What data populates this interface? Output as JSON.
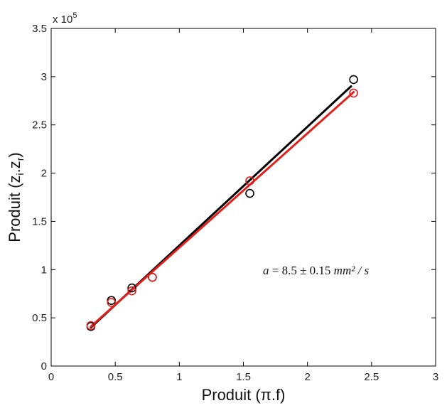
{
  "chart_data": {
    "type": "scatter",
    "xlabel": "Produit (π.f)",
    "ylabel_main": "Produit (z",
    "ylabel_sub1": "i",
    "ylabel_mid": ".z",
    "ylabel_sub2": "r",
    "ylabel_end": ")",
    "y_multiplier_base": "x 10",
    "y_multiplier_exp": "5",
    "xlim": [
      0,
      3
    ],
    "ylim": [
      0,
      3.5
    ],
    "x_ticks": [
      "0",
      "0.5",
      "1",
      "1.5",
      "2",
      "2.5",
      "3"
    ],
    "y_ticks": [
      "0",
      "0.5",
      "1",
      "1.5",
      "2",
      "2.5",
      "3",
      "3.5"
    ],
    "grid": false,
    "annotation": {
      "a": "a",
      "eq": " = 8.5 ± 0.15 ",
      "unit": "mm² / s"
    },
    "series": [
      {
        "color": "#000000",
        "points": [
          {
            "x": 0.31,
            "y": 0.41
          },
          {
            "x": 0.47,
            "y": 0.68
          },
          {
            "x": 0.63,
            "y": 0.81
          },
          {
            "x": 0.79,
            "y": 0.92
          },
          {
            "x": 1.55,
            "y": 1.79
          },
          {
            "x": 2.36,
            "y": 2.97
          }
        ],
        "fit": {
          "x": [
            0.31,
            2.34
          ],
          "y": [
            0.4,
            2.9
          ]
        }
      },
      {
        "color": "#e0201c",
        "points": [
          {
            "x": 0.31,
            "y": 0.42
          },
          {
            "x": 0.47,
            "y": 0.66
          },
          {
            "x": 0.63,
            "y": 0.78
          },
          {
            "x": 0.79,
            "y": 0.92
          },
          {
            "x": 1.55,
            "y": 1.92
          },
          {
            "x": 2.36,
            "y": 2.83
          }
        ],
        "fit": {
          "x": [
            0.31,
            2.36
          ],
          "y": [
            0.41,
            2.84
          ]
        }
      }
    ]
  }
}
